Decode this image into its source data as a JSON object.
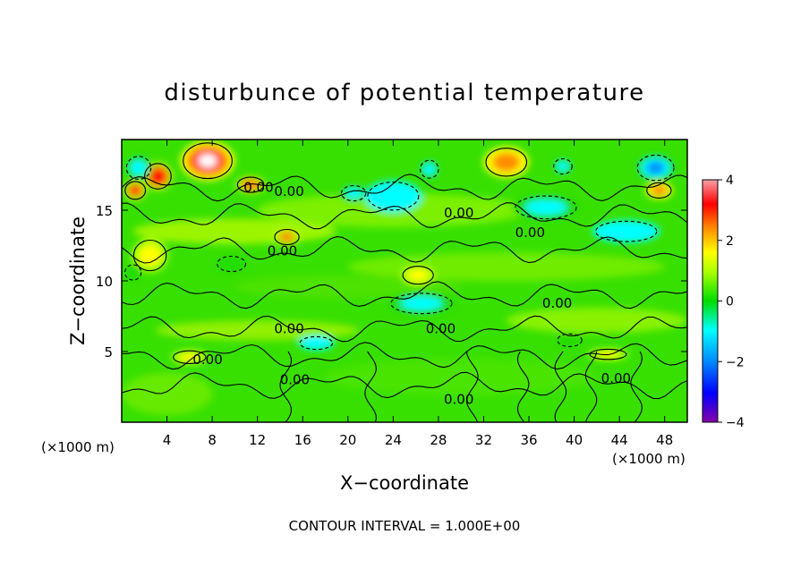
{
  "chart_data": {
    "type": "heatmap",
    "title": "disturbunce of potential temperature",
    "xlabel": "X−coordinate",
    "ylabel": "Z−coordinate",
    "x_unit_left": "(×1000 m)",
    "x_unit_right": "(×1000 m)",
    "footer": "CONTOUR INTERVAL = 1.000E+00",
    "xlim": [
      0,
      50
    ],
    "ylim": [
      0,
      20
    ],
    "xticks": [
      4,
      8,
      12,
      16,
      20,
      24,
      28,
      32,
      36,
      40,
      44,
      48
    ],
    "yticks": [
      5,
      10,
      15
    ],
    "colorbar": {
      "range": [
        -4,
        4
      ],
      "ticks": [
        "4",
        "2",
        "0",
        "−2",
        "−4"
      ],
      "colors": [
        "#f8a0a8",
        "#ff0000",
        "#ff8c00",
        "#ffff00",
        "#00dd00",
        "#00ffff",
        "#0088ff",
        "#0000ff",
        "#8800aa"
      ]
    },
    "contour_labels": [
      {
        "text": "0.00",
        "x": 12.1,
        "y": 16.3
      },
      {
        "text": "0.00",
        "x": 14.8,
        "y": 16.0
      },
      {
        "text": "0.00",
        "x": 29.8,
        "y": 14.5
      },
      {
        "text": "0.00",
        "x": 36.1,
        "y": 13.1
      },
      {
        "text": "0.00",
        "x": 14.2,
        "y": 11.8
      },
      {
        "text": "0.00",
        "x": 38.5,
        "y": 8.1
      },
      {
        "text": "0.00",
        "x": 14.8,
        "y": 6.3
      },
      {
        "text": "0.00",
        "x": 28.2,
        "y": 6.3
      },
      {
        "text": "0.00",
        "x": 7.6,
        "y": 4.1
      },
      {
        "text": "0.00",
        "x": 15.3,
        "y": 2.7
      },
      {
        "text": "0.00",
        "x": 29.8,
        "y": 1.3
      },
      {
        "text": "0.00",
        "x": 43.7,
        "y": 2.8
      }
    ],
    "anomalies": [
      {
        "x": 7.6,
        "y": 18.5,
        "v": 4.0,
        "rx": 2.4,
        "ry": 1.4
      },
      {
        "x": 3.2,
        "y": 17.4,
        "v": 3.1,
        "rx": 1.3,
        "ry": 1.0
      },
      {
        "x": 1.2,
        "y": 16.4,
        "v": 2.4,
        "rx": 1.0,
        "ry": 0.7
      },
      {
        "x": 11.4,
        "y": 16.8,
        "v": 2.3,
        "rx": 1.3,
        "ry": 0.6
      },
      {
        "x": 34.0,
        "y": 18.4,
        "v": 2.0,
        "rx": 2.0,
        "ry": 1.1
      },
      {
        "x": 47.5,
        "y": 16.4,
        "v": 2.0,
        "rx": 1.2,
        "ry": 0.6
      },
      {
        "x": 14.6,
        "y": 13.1,
        "v": 1.6,
        "rx": 1.2,
        "ry": 0.6
      },
      {
        "x": 26.2,
        "y": 10.4,
        "v": 1.5,
        "rx": 1.5,
        "ry": 0.7
      },
      {
        "x": 2.5,
        "y": 11.8,
        "v": 1.2,
        "rx": 1.6,
        "ry": 1.2
      },
      {
        "x": 43.0,
        "y": 4.8,
        "v": 1.3,
        "rx": 1.8,
        "ry": 0.4
      },
      {
        "x": 6.0,
        "y": 4.6,
        "v": 1.2,
        "rx": 1.6,
        "ry": 0.5
      },
      {
        "x": 47.2,
        "y": 18.0,
        "v": -2.4,
        "rx": 1.8,
        "ry": 1.0
      },
      {
        "x": 20.5,
        "y": 16.2,
        "v": -1.5,
        "rx": 1.2,
        "ry": 0.6
      },
      {
        "x": 27.2,
        "y": 17.9,
        "v": -1.4,
        "rx": 0.9,
        "ry": 0.7
      },
      {
        "x": 39.0,
        "y": 18.1,
        "v": -1.4,
        "rx": 0.9,
        "ry": 0.6
      },
      {
        "x": 1.5,
        "y": 18.0,
        "v": -1.4,
        "rx": 1.2,
        "ry": 0.9
      },
      {
        "x": 37.5,
        "y": 15.2,
        "v": -1.2,
        "rx": 3.0,
        "ry": 0.9
      },
      {
        "x": 24.0,
        "y": 16.0,
        "v": -1.0,
        "rx": 2.5,
        "ry": 1.1
      },
      {
        "x": 26.5,
        "y": 8.4,
        "v": -1.1,
        "rx": 3.0,
        "ry": 0.8
      },
      {
        "x": 44.6,
        "y": 13.5,
        "v": -1.0,
        "rx": 3.0,
        "ry": 0.8
      },
      {
        "x": 9.7,
        "y": 11.2,
        "v": -0.9,
        "rx": 1.4,
        "ry": 0.6
      },
      {
        "x": 17.2,
        "y": 5.6,
        "v": -1.0,
        "rx": 1.6,
        "ry": 0.5
      },
      {
        "x": 39.6,
        "y": 5.8,
        "v": -0.9,
        "rx": 1.2,
        "ry": 0.5
      },
      {
        "x": 1.0,
        "y": 10.6,
        "v": -0.9,
        "rx": 0.8,
        "ry": 0.6
      }
    ]
  }
}
